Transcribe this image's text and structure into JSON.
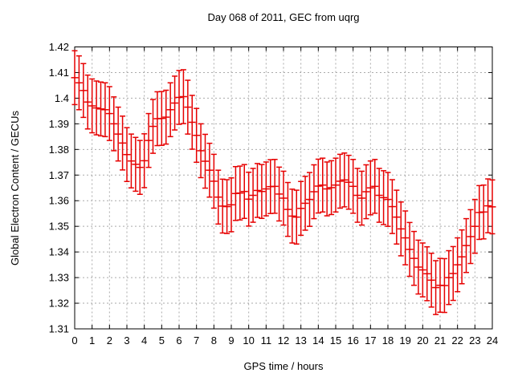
{
  "window": {
    "title": "Day 068 of 2011, GEC from uqrg"
  },
  "chart_data": {
    "type": "scatter",
    "subtype": "errorbars",
    "title": "Day 068 of 2011, GEC from uqrg",
    "xlabel": "GPS time / hours",
    "ylabel": "Global Electron Content / GECUs",
    "xlim": [
      0,
      24
    ],
    "ylim": [
      1.31,
      1.42
    ],
    "xtick_step": 1,
    "ytick_step": 0.01,
    "grid": true,
    "legend": "none",
    "series_color": "#e60000",
    "grid_color": "#aaaaaa",
    "frame_color": "#000000",
    "yerr": 0.0105,
    "x": [
      0,
      0.25,
      0.5,
      0.75,
      1,
      1.25,
      1.5,
      1.75,
      2,
      2.25,
      2.5,
      2.75,
      3,
      3.25,
      3.5,
      3.75,
      4,
      4.25,
      4.5,
      4.75,
      5,
      5.25,
      5.5,
      5.75,
      6,
      6.25,
      6.5,
      6.75,
      7,
      7.25,
      7.5,
      7.75,
      8,
      8.25,
      8.5,
      8.75,
      9,
      9.25,
      9.5,
      9.75,
      10,
      10.25,
      10.5,
      10.75,
      11,
      11.25,
      11.5,
      11.75,
      12,
      12.25,
      12.5,
      12.75,
      13,
      13.25,
      13.5,
      13.75,
      14,
      14.25,
      14.5,
      14.75,
      15,
      15.25,
      15.5,
      15.75,
      16,
      16.25,
      16.5,
      16.75,
      17,
      17.25,
      17.5,
      17.75,
      18,
      18.25,
      18.5,
      18.75,
      19,
      19.25,
      19.5,
      19.75,
      20,
      20.25,
      20.5,
      20.75,
      21,
      21.25,
      21.5,
      21.75,
      22,
      22.25,
      22.5,
      22.75,
      23,
      23.25,
      23.5,
      23.75,
      24
    ],
    "y": [
      1.408,
      1.406,
      1.403,
      1.3985,
      1.397,
      1.3962,
      1.3958,
      1.3955,
      1.394,
      1.39,
      1.386,
      1.3825,
      1.378,
      1.3755,
      1.3742,
      1.373,
      1.3756,
      1.3835,
      1.389,
      1.392,
      1.3921,
      1.3926,
      1.3955,
      1.3981,
      1.4003,
      1.4006,
      1.3965,
      1.3906,
      1.3855,
      1.3795,
      1.3754,
      1.3719,
      1.3676,
      1.3614,
      1.3579,
      1.3577,
      1.3584,
      1.3628,
      1.363,
      1.3636,
      1.3606,
      1.3621,
      1.364,
      1.3636,
      1.3646,
      1.3655,
      1.3656,
      1.3626,
      1.361,
      1.3566,
      1.354,
      1.3536,
      1.357,
      1.359,
      1.3605,
      1.3635,
      1.3657,
      1.3661,
      1.3646,
      1.3651,
      1.3661,
      1.3676,
      1.3681,
      1.3672,
      1.3656,
      1.3621,
      1.361,
      1.3635,
      1.365,
      1.3656,
      1.3621,
      1.3612,
      1.3605,
      1.3577,
      1.3536,
      1.349,
      1.3455,
      1.341,
      1.3375,
      1.3341,
      1.333,
      1.3315,
      1.329,
      1.3261,
      1.327,
      1.3269,
      1.33,
      1.3316,
      1.335,
      1.3381,
      1.3425,
      1.346,
      1.35,
      1.3554,
      1.3556,
      1.358,
      1.3576
    ]
  }
}
